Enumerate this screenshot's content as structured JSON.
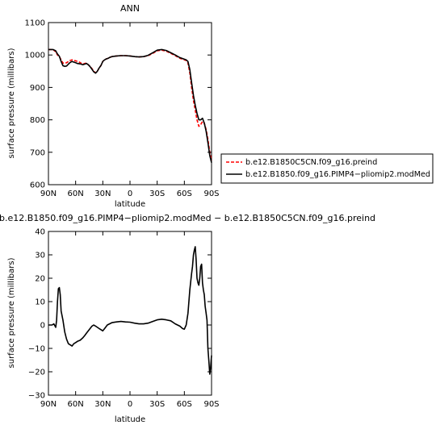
{
  "chart_data": [
    {
      "type": "line",
      "title": "ANN",
      "xlabel": "latitude",
      "ylabel": "surface pressure (millibars)",
      "xlim": [
        90,
        -90
      ],
      "ylim": [
        600,
        1100
      ],
      "x_ticks": [
        90,
        60,
        30,
        0,
        -30,
        -60,
        -90
      ],
      "x_tick_labels": [
        "90N",
        "60N",
        "30N",
        "0",
        "30S",
        "60S",
        "90S"
      ],
      "y_ticks": [
        600,
        700,
        800,
        900,
        1000,
        1100
      ],
      "y_tick_labels": [
        "600",
        "700",
        "800",
        "900",
        "1000",
        "1100"
      ],
      "legend_position": "right",
      "series": [
        {
          "name": "b.e12.B1850C5CN.f09_g16.preind",
          "color": "#ff0000",
          "dash": "dashed",
          "x": [
            90,
            85,
            82,
            80,
            78,
            76,
            74,
            72,
            70,
            68,
            66,
            64,
            62,
            60,
            58,
            56,
            54,
            52,
            50,
            48,
            46,
            44,
            42,
            40,
            38,
            36,
            34,
            32,
            30,
            28,
            26,
            24,
            22,
            20,
            15,
            10,
            5,
            0,
            -5,
            -10,
            -15,
            -20,
            -25,
            -30,
            -35,
            -40,
            -45,
            -50,
            -55,
            -60,
            -62,
            -64,
            -66,
            -68,
            -70,
            -72,
            -74,
            -76,
            -78,
            -80,
            -82,
            -84,
            -86,
            -88,
            -90
          ],
          "y": [
            1017,
            1017,
            1010,
            1000,
            995,
            985,
            975,
            975,
            976,
            980,
            983,
            985,
            983,
            982,
            980,
            978,
            975,
            972,
            974,
            975,
            970,
            965,
            958,
            950,
            945,
            950,
            960,
            968,
            980,
            985,
            988,
            990,
            993,
            995,
            997,
            998,
            998,
            997,
            995,
            994,
            995,
            998,
            1005,
            1013,
            1015,
            1012,
            1005,
            998,
            990,
            985,
            983,
            975,
            945,
            900,
            860,
            830,
            800,
            780,
            785,
            795,
            790,
            770,
            740,
            700,
            675
          ]
        },
        {
          "name": "b.e12.B1850.f09_g16.PIMP4−pliomip2.modMed",
          "color": "#000000",
          "dash": "solid",
          "x": [
            90,
            85,
            82,
            80,
            78,
            76,
            74,
            72,
            70,
            68,
            66,
            64,
            62,
            60,
            58,
            56,
            54,
            52,
            50,
            48,
            46,
            44,
            42,
            40,
            38,
            36,
            34,
            32,
            30,
            28,
            26,
            24,
            22,
            20,
            15,
            10,
            5,
            0,
            -5,
            -10,
            -15,
            -20,
            -25,
            -30,
            -35,
            -40,
            -45,
            -50,
            -55,
            -60,
            -62,
            -64,
            -66,
            -68,
            -70,
            -72,
            -74,
            -76,
            -78,
            -80,
            -82,
            -84,
            -86,
            -88,
            -90
          ],
          "y": [
            1017,
            1017,
            1013,
            1003,
            996,
            980,
            967,
            965,
            966,
            972,
            977,
            980,
            978,
            976,
            974,
            973,
            972,
            970,
            972,
            974,
            970,
            964,
            956,
            948,
            944,
            950,
            960,
            968,
            980,
            985,
            988,
            990,
            993,
            995,
            997,
            998,
            998,
            997,
            995,
            994,
            995,
            999,
            1007,
            1015,
            1017,
            1014,
            1007,
            1000,
            992,
            987,
            985,
            980,
            955,
            915,
            875,
            845,
            820,
            800,
            800,
            805,
            790,
            765,
            730,
            690,
            668
          ]
        }
      ]
    },
    {
      "type": "line",
      "title": "b.e12.B1850.f09_g16.PIMP4−pliomip2.modMed − b.e12.B1850C5CN.f09_g16.preind",
      "xlabel": "latitude",
      "ylabel": "surface pressure (millibars)",
      "xlim": [
        90,
        -90
      ],
      "ylim": [
        -30,
        40
      ],
      "x_ticks": [
        90,
        60,
        30,
        0,
        -30,
        -60,
        -90
      ],
      "x_tick_labels": [
        "90N",
        "60N",
        "30N",
        "0",
        "30S",
        "60S",
        "90S"
      ],
      "y_ticks": [
        -30,
        -20,
        -10,
        0,
        10,
        20,
        30,
        40
      ],
      "y_tick_labels": [
        "−30",
        "−20",
        "−10",
        "0",
        "10",
        "20",
        "30",
        "40"
      ],
      "series": [
        {
          "color": "#000000",
          "dash": "solid",
          "x": [
            90,
            86,
            84,
            82,
            81,
            80,
            79,
            78,
            77,
            76,
            74,
            72,
            70,
            68,
            66,
            64,
            62,
            60,
            58,
            55,
            52,
            50,
            48,
            45,
            42,
            40,
            38,
            36,
            34,
            32,
            30,
            28,
            25,
            20,
            15,
            10,
            5,
            0,
            -5,
            -10,
            -15,
            -20,
            -25,
            -30,
            -35,
            -40,
            -45,
            -50,
            -55,
            -58,
            -60,
            -62,
            -64,
            -66,
            -68,
            -69,
            -70,
            -71,
            -72,
            -73,
            -74,
            -75,
            -76,
            -77,
            -78,
            -79,
            -80,
            -81,
            -82,
            -83,
            -84,
            -85,
            -86,
            -87,
            -88,
            -89,
            -90
          ],
          "y": [
            0,
            0,
            0.5,
            -1,
            2,
            10,
            15.5,
            16,
            13,
            6,
            2,
            -3,
            -6,
            -8,
            -8.5,
            -9,
            -8,
            -7.5,
            -7,
            -6.5,
            -5.5,
            -4.5,
            -3.5,
            -2,
            -0.5,
            0,
            -0.5,
            -1,
            -1.5,
            -2,
            -2.5,
            -1.5,
            0,
            1,
            1.3,
            1.5,
            1.3,
            1.2,
            0.8,
            0.5,
            0.5,
            0.8,
            1.5,
            2.2,
            2.5,
            2.2,
            1.8,
            0.5,
            -0.5,
            -1.5,
            -1.8,
            0,
            5,
            15,
            22,
            25,
            30,
            32,
            33.5,
            28,
            20,
            18,
            17,
            20,
            25,
            26,
            18,
            15,
            13,
            8,
            5,
            2,
            -10,
            -15,
            -21,
            -18,
            -13
          ]
        }
      ]
    }
  ]
}
